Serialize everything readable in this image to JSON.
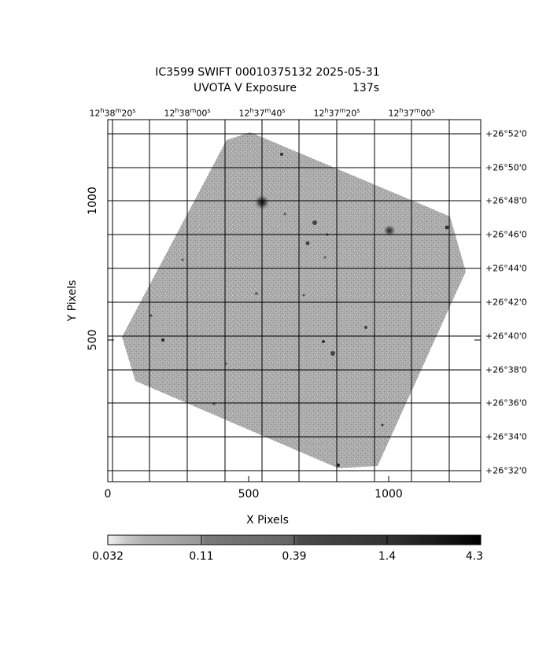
{
  "header": {
    "line1": "IC3599 SWIFT 00010375132 2025-05-31",
    "line2_label": "UVOTA V Exposure",
    "line2_value": "137s"
  },
  "ra_ticks": [
    "12h38m20s",
    "12h38m00s",
    "12h37m40s",
    "12h37m20s",
    "12h37m00s"
  ],
  "dec_ticks": [
    "+26°52'0",
    "+26°50'0",
    "+26°48'0",
    "+26°46'0",
    "+26°44'0",
    "+26°42'0",
    "+26°40'0",
    "+26°38'0",
    "+26°36'0",
    "+26°34'0",
    "+26°32'0"
  ],
  "x_axis": {
    "label": "X Pixels",
    "ticks": [
      "0",
      "500",
      "1000"
    ]
  },
  "y_axis": {
    "label": "Y Pixels",
    "ticks": [
      "1000",
      "500"
    ]
  },
  "colorbar": {
    "ticks": [
      "0.032",
      "0.11",
      "0.39",
      "1.4",
      "4.3"
    ]
  },
  "colors": {
    "background": "#ffffff",
    "image_field": "#9a9a9a",
    "grid": "#000000"
  }
}
